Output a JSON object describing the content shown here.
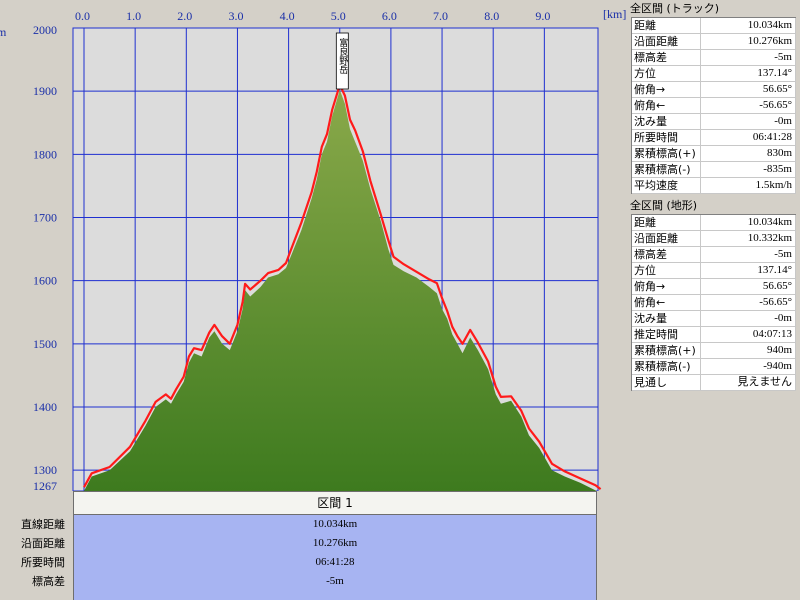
{
  "chart_data": {
    "type": "area",
    "title": "",
    "xlabel": "[km]",
    "ylabel": "m",
    "xlim": [
      0,
      10.2
    ],
    "ylim": [
      1267,
      2000
    ],
    "x_ticks": [
      "0.0",
      "1.0",
      "2.0",
      "3.0",
      "4.0",
      "5.0",
      "6.0",
      "7.0",
      "8.0",
      "9.0"
    ],
    "y_ticks": [
      "2000",
      "1900",
      "1800",
      "1700",
      "1600",
      "1500",
      "1400",
      "1300",
      "1267"
    ],
    "peak_label": "富良野岳",
    "peak_x": 5.05,
    "series": [
      {
        "points": [
          [
            0,
            1267
          ],
          [
            0.15,
            1290
          ],
          [
            0.5,
            1300
          ],
          [
            0.9,
            1330
          ],
          [
            1.2,
            1370
          ],
          [
            1.4,
            1400
          ],
          [
            1.6,
            1412
          ],
          [
            1.7,
            1405
          ],
          [
            1.8,
            1420
          ],
          [
            1.95,
            1440
          ],
          [
            2.05,
            1470
          ],
          [
            2.15,
            1485
          ],
          [
            2.3,
            1480
          ],
          [
            2.45,
            1510
          ],
          [
            2.55,
            1520
          ],
          [
            2.7,
            1500
          ],
          [
            2.85,
            1490
          ],
          [
            3.0,
            1520
          ],
          [
            3.1,
            1555
          ],
          [
            3.15,
            1585
          ],
          [
            3.25,
            1575
          ],
          [
            3.45,
            1590
          ],
          [
            3.6,
            1605
          ],
          [
            3.8,
            1610
          ],
          [
            3.95,
            1620
          ],
          [
            4.05,
            1640
          ],
          [
            4.25,
            1680
          ],
          [
            4.45,
            1730
          ],
          [
            4.55,
            1760
          ],
          [
            4.65,
            1800
          ],
          [
            4.75,
            1820
          ],
          [
            4.85,
            1860
          ],
          [
            5.0,
            1902
          ],
          [
            5.1,
            1880
          ],
          [
            5.2,
            1840
          ],
          [
            5.3,
            1820
          ],
          [
            5.45,
            1790
          ],
          [
            5.6,
            1745
          ],
          [
            5.8,
            1695
          ],
          [
            5.95,
            1650
          ],
          [
            6.05,
            1625
          ],
          [
            6.25,
            1615
          ],
          [
            6.5,
            1605
          ],
          [
            6.75,
            1590
          ],
          [
            6.9,
            1580
          ],
          [
            7.0,
            1555
          ],
          [
            7.1,
            1540
          ],
          [
            7.2,
            1515
          ],
          [
            7.3,
            1500
          ],
          [
            7.4,
            1485
          ],
          [
            7.55,
            1510
          ],
          [
            7.7,
            1490
          ],
          [
            7.9,
            1460
          ],
          [
            8.05,
            1420
          ],
          [
            8.15,
            1405
          ],
          [
            8.35,
            1410
          ],
          [
            8.55,
            1385
          ],
          [
            8.7,
            1355
          ],
          [
            8.9,
            1335
          ],
          [
            9.15,
            1300
          ],
          [
            9.4,
            1290
          ],
          [
            9.7,
            1280
          ],
          [
            10.0,
            1268
          ],
          [
            10.1,
            1262
          ]
        ]
      },
      {
        "points": [
          [
            0,
            1273
          ],
          [
            0.15,
            1295
          ],
          [
            0.5,
            1305
          ],
          [
            0.9,
            1337
          ],
          [
            1.2,
            1378
          ],
          [
            1.4,
            1408
          ],
          [
            1.6,
            1420
          ],
          [
            1.7,
            1413
          ],
          [
            1.8,
            1428
          ],
          [
            1.95,
            1448
          ],
          [
            2.05,
            1480
          ],
          [
            2.15,
            1493
          ],
          [
            2.3,
            1490
          ],
          [
            2.45,
            1518
          ],
          [
            2.55,
            1530
          ],
          [
            2.7,
            1512
          ],
          [
            2.85,
            1500
          ],
          [
            3.0,
            1530
          ],
          [
            3.1,
            1566
          ],
          [
            3.15,
            1595
          ],
          [
            3.25,
            1586
          ],
          [
            3.45,
            1600
          ],
          [
            3.6,
            1612
          ],
          [
            3.8,
            1617
          ],
          [
            3.95,
            1628
          ],
          [
            4.05,
            1650
          ],
          [
            4.25,
            1692
          ],
          [
            4.45,
            1740
          ],
          [
            4.55,
            1772
          ],
          [
            4.65,
            1812
          ],
          [
            4.75,
            1832
          ],
          [
            4.85,
            1870
          ],
          [
            5.0,
            1910
          ],
          [
            5.1,
            1893
          ],
          [
            5.2,
            1855
          ],
          [
            5.3,
            1838
          ],
          [
            5.45,
            1805
          ],
          [
            5.6,
            1758
          ],
          [
            5.8,
            1705
          ],
          [
            5.95,
            1664
          ],
          [
            6.05,
            1638
          ],
          [
            6.25,
            1626
          ],
          [
            6.5,
            1614
          ],
          [
            6.75,
            1602
          ],
          [
            6.9,
            1596
          ],
          [
            7.0,
            1572
          ],
          [
            7.1,
            1552
          ],
          [
            7.2,
            1527
          ],
          [
            7.3,
            1512
          ],
          [
            7.4,
            1500
          ],
          [
            7.55,
            1522
          ],
          [
            7.7,
            1502
          ],
          [
            7.9,
            1472
          ],
          [
            8.05,
            1432
          ],
          [
            8.15,
            1416
          ],
          [
            8.35,
            1417
          ],
          [
            8.55,
            1394
          ],
          [
            8.7,
            1366
          ],
          [
            8.9,
            1345
          ],
          [
            9.15,
            1310
          ],
          [
            9.4,
            1298
          ],
          [
            9.7,
            1287
          ],
          [
            10.0,
            1276
          ],
          [
            10.1,
            1270
          ]
        ]
      }
    ]
  },
  "section": {
    "header": "区間 1",
    "labels": [
      "直線距離",
      "沿面距離",
      "所要時間",
      "標高差"
    ],
    "values": [
      "10.034km",
      "10.276km",
      "06:41:28",
      "-5m"
    ]
  },
  "track_panel": {
    "title": "全区間 (トラック)",
    "rows": [
      {
        "label": "距離",
        "value": "10.034km"
      },
      {
        "label": "沿面距離",
        "value": "10.276km"
      },
      {
        "label": "標高差",
        "value": "-5m"
      },
      {
        "label": "方位",
        "value": "137.14°"
      },
      {
        "label": "俯角→",
        "value": "56.65°"
      },
      {
        "label": "俯角←",
        "value": "-56.65°"
      },
      {
        "label": "沈み量",
        "value": "-0m"
      },
      {
        "label": "所要時間",
        "value": "06:41:28"
      },
      {
        "label": "累積標高(+)",
        "value": "830m"
      },
      {
        "label": "累積標高(-)",
        "value": "-835m"
      },
      {
        "label": "平均速度",
        "value": "1.5km/h"
      }
    ]
  },
  "terrain_panel": {
    "title": "全区間 (地形)",
    "rows": [
      {
        "label": "距離",
        "value": "10.034km"
      },
      {
        "label": "沿面距離",
        "value": "10.332km"
      },
      {
        "label": "標高差",
        "value": "-5m"
      },
      {
        "label": "方位",
        "value": "137.14°"
      },
      {
        "label": "俯角→",
        "value": "56.65°"
      },
      {
        "label": "俯角←",
        "value": "-56.65°"
      },
      {
        "label": "沈み量",
        "value": "-0m"
      },
      {
        "label": "推定時間",
        "value": "04:07:13"
      },
      {
        "label": "累積標高(+)",
        "value": "940m"
      },
      {
        "label": "累積標高(-)",
        "value": "-940m"
      },
      {
        "label": "見通し",
        "value": "見えません"
      }
    ]
  },
  "colors": {
    "terrain_fill_top": "#8aa94a",
    "terrain_fill_bottom": "#3d7a1e",
    "track_line": "#ff1a1a",
    "grid_line": "#1e2fd0",
    "plot_bg": "#dcdcdc",
    "table_value_bg": "#a7b4f2"
  }
}
